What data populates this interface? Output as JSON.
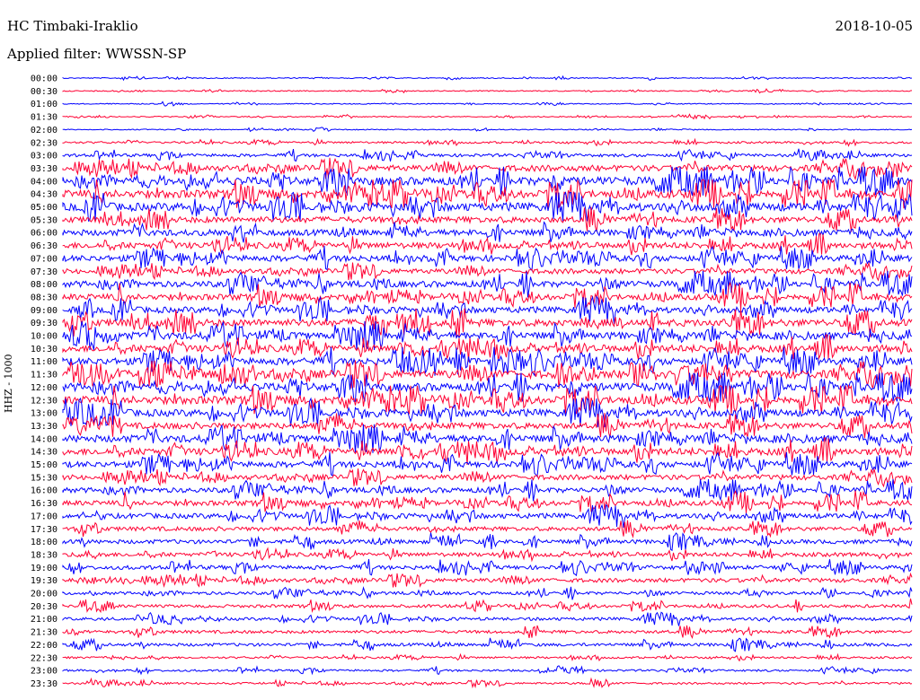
{
  "header": {
    "station": "HC Timbaki-Iraklio",
    "date": "2018-10-05",
    "filter": "Applied filter: WWSSN-SP",
    "channel_label": "HHZ - 1000"
  },
  "colors": {
    "even_hour": "#0000ff",
    "half_hour": "#ff0033"
  },
  "chart_data": {
    "type": "line",
    "title": "HC Timbaki-Iraklio",
    "ylabel": "HHZ - 1000",
    "xlabel": "",
    "grid": false,
    "categories": [
      "00:00",
      "00:30",
      "01:00",
      "01:30",
      "02:00",
      "02:30",
      "03:00",
      "03:30",
      "04:00",
      "04:30",
      "05:00",
      "05:30",
      "06:00",
      "06:30",
      "07:00",
      "07:30",
      "08:00",
      "08:30",
      "09:00",
      "09:30",
      "10:00",
      "10:30",
      "11:00",
      "11:30",
      "12:00",
      "12:30",
      "13:00",
      "13:30",
      "14:00",
      "14:30",
      "15:00",
      "15:30",
      "16:00",
      "16:30",
      "17:00",
      "17:30",
      "18:00",
      "18:30",
      "19:00",
      "19:30",
      "20:00",
      "20:30",
      "21:00",
      "21:30",
      "22:00",
      "22:30",
      "23:00",
      "23:30"
    ],
    "noise_level": [
      1,
      1,
      1,
      1,
      1,
      2,
      3,
      6,
      8,
      8,
      8,
      6,
      6,
      6,
      6,
      5,
      6,
      6,
      6,
      7,
      7,
      7,
      7,
      8,
      8,
      8,
      7,
      6,
      7,
      7,
      6,
      5,
      5,
      5,
      5,
      4,
      4,
      4,
      4,
      4,
      3,
      3,
      3,
      3,
      3,
      2,
      2,
      2
    ]
  }
}
